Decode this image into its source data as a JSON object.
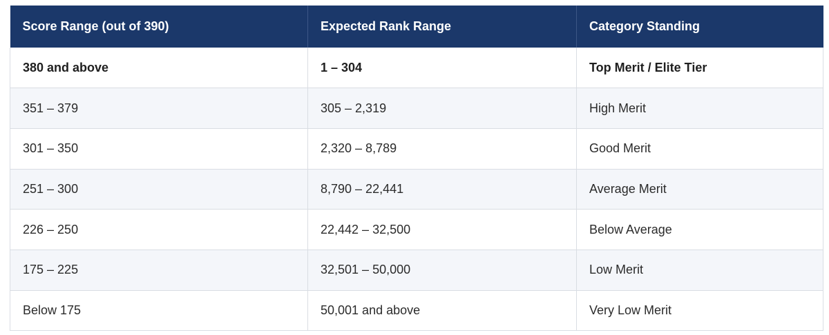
{
  "table": {
    "headers": [
      "Score Range (out of 390)",
      "Expected Rank Range",
      "Category Standing"
    ],
    "rows": [
      [
        "380 and above",
        "1 – 304",
        "Top Merit / Elite Tier"
      ],
      [
        "351 – 379",
        "305 – 2,319",
        "High Merit"
      ],
      [
        "301 – 350",
        "2,320 – 8,789",
        "Good Merit"
      ],
      [
        "251 – 300",
        "8,790 – 22,441",
        "Average Merit"
      ],
      [
        "226 – 250",
        "22,442 – 32,500",
        "Below Average"
      ],
      [
        "175 – 225",
        "32,501 – 50,000",
        "Low Merit"
      ],
      [
        "Below 175",
        "50,001 and above",
        "Very Low Merit"
      ]
    ],
    "colors": {
      "header_bg": "#1b386a",
      "header_text": "#ffffff",
      "stripe_bg": "#f4f6fa",
      "border": "#d9dde3"
    }
  }
}
